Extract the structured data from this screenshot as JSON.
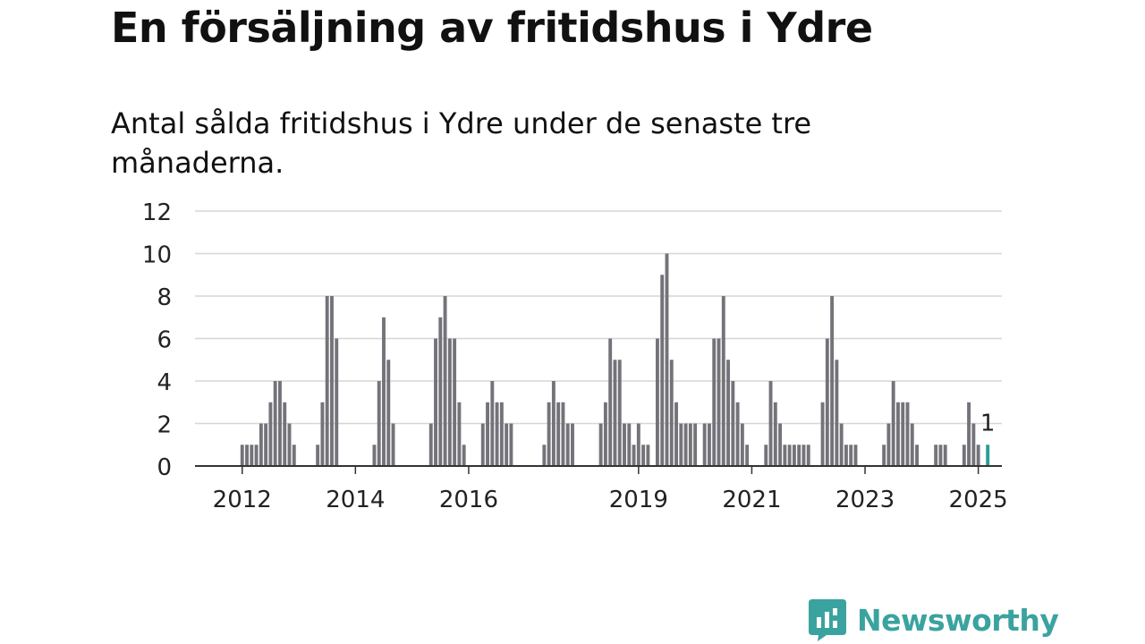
{
  "header": {
    "title": "En försäljning av fritidshus i Ydre",
    "subtitle": "Antal sålda fritidshus i Ydre under de senaste tre månaderna."
  },
  "brand": {
    "name": "Newsworthy",
    "icon": "newsworthy-logo-icon",
    "color": "#3aa39f"
  },
  "colors": {
    "bar": "#74737a",
    "highlight": "#2a9d93",
    "grid": "#d6d6d6",
    "axis": "#333333"
  },
  "chart_data": {
    "type": "bar",
    "title": "",
    "xlabel": "",
    "ylabel": "",
    "ylim": [
      0,
      12
    ],
    "yticks": [
      0,
      2,
      4,
      6,
      8,
      10,
      12
    ],
    "xlim": [
      "2011-03",
      "2025-06"
    ],
    "xticks": [
      {
        "label": "2012",
        "x": "2012-01"
      },
      {
        "label": "2014",
        "x": "2014-01"
      },
      {
        "label": "2016",
        "x": "2016-01"
      },
      {
        "label": "2019",
        "x": "2019-01"
      },
      {
        "label": "2021",
        "x": "2021-01"
      },
      {
        "label": "2023",
        "x": "2023-01"
      },
      {
        "label": "2025",
        "x": "2025-01"
      }
    ],
    "grid": true,
    "series": [
      {
        "values": [
          [
            "2012-01",
            1
          ],
          [
            "2012-02",
            1
          ],
          [
            "2012-03",
            1
          ],
          [
            "2012-04",
            1
          ],
          [
            "2012-05",
            2
          ],
          [
            "2012-06",
            2
          ],
          [
            "2012-07",
            3
          ],
          [
            "2012-08",
            4
          ],
          [
            "2012-09",
            4
          ],
          [
            "2012-10",
            3
          ],
          [
            "2012-11",
            2
          ],
          [
            "2012-12",
            1
          ],
          [
            "2013-05",
            1
          ],
          [
            "2013-06",
            3
          ],
          [
            "2013-07",
            8
          ],
          [
            "2013-08",
            8
          ],
          [
            "2013-09",
            6
          ],
          [
            "2014-05",
            1
          ],
          [
            "2014-06",
            4
          ],
          [
            "2014-07",
            7
          ],
          [
            "2014-08",
            5
          ],
          [
            "2014-09",
            2
          ],
          [
            "2015-05",
            2
          ],
          [
            "2015-06",
            6
          ],
          [
            "2015-07",
            7
          ],
          [
            "2015-08",
            8
          ],
          [
            "2015-09",
            6
          ],
          [
            "2015-10",
            6
          ],
          [
            "2015-11",
            3
          ],
          [
            "2015-12",
            1
          ],
          [
            "2016-04",
            2
          ],
          [
            "2016-05",
            3
          ],
          [
            "2016-06",
            4
          ],
          [
            "2016-07",
            3
          ],
          [
            "2016-08",
            3
          ],
          [
            "2016-09",
            2
          ],
          [
            "2016-10",
            2
          ],
          [
            "2017-05",
            1
          ],
          [
            "2017-06",
            3
          ],
          [
            "2017-07",
            4
          ],
          [
            "2017-08",
            3
          ],
          [
            "2017-09",
            3
          ],
          [
            "2017-10",
            2
          ],
          [
            "2017-11",
            2
          ],
          [
            "2018-05",
            2
          ],
          [
            "2018-06",
            3
          ],
          [
            "2018-07",
            6
          ],
          [
            "2018-08",
            5
          ],
          [
            "2018-09",
            5
          ],
          [
            "2018-10",
            2
          ],
          [
            "2018-11",
            2
          ],
          [
            "2018-12",
            1
          ],
          [
            "2019-01",
            2
          ],
          [
            "2019-02",
            1
          ],
          [
            "2019-03",
            1
          ],
          [
            "2019-05",
            6
          ],
          [
            "2019-06",
            9
          ],
          [
            "2019-07",
            10
          ],
          [
            "2019-08",
            5
          ],
          [
            "2019-09",
            3
          ],
          [
            "2019-10",
            2
          ],
          [
            "2019-11",
            2
          ],
          [
            "2019-12",
            2
          ],
          [
            "2020-01",
            2
          ],
          [
            "2020-03",
            2
          ],
          [
            "2020-04",
            2
          ],
          [
            "2020-05",
            6
          ],
          [
            "2020-06",
            6
          ],
          [
            "2020-07",
            8
          ],
          [
            "2020-08",
            5
          ],
          [
            "2020-09",
            4
          ],
          [
            "2020-10",
            3
          ],
          [
            "2020-11",
            2
          ],
          [
            "2020-12",
            1
          ],
          [
            "2021-04",
            1
          ],
          [
            "2021-05",
            4
          ],
          [
            "2021-06",
            3
          ],
          [
            "2021-07",
            2
          ],
          [
            "2021-08",
            1
          ],
          [
            "2021-09",
            1
          ],
          [
            "2021-10",
            1
          ],
          [
            "2021-11",
            1
          ],
          [
            "2021-12",
            1
          ],
          [
            "2022-01",
            1
          ],
          [
            "2022-04",
            3
          ],
          [
            "2022-05",
            6
          ],
          [
            "2022-06",
            8
          ],
          [
            "2022-07",
            5
          ],
          [
            "2022-08",
            2
          ],
          [
            "2022-09",
            1
          ],
          [
            "2022-10",
            1
          ],
          [
            "2022-11",
            1
          ],
          [
            "2023-05",
            1
          ],
          [
            "2023-06",
            2
          ],
          [
            "2023-07",
            4
          ],
          [
            "2023-08",
            3
          ],
          [
            "2023-09",
            3
          ],
          [
            "2023-10",
            3
          ],
          [
            "2023-11",
            2
          ],
          [
            "2023-12",
            1
          ],
          [
            "2024-04",
            1
          ],
          [
            "2024-05",
            1
          ],
          [
            "2024-06",
            1
          ],
          [
            "2024-10",
            1
          ],
          [
            "2024-11",
            3
          ],
          [
            "2024-12",
            2
          ],
          [
            "2025-01",
            1
          ]
        ]
      },
      {
        "highlight": true,
        "values": [
          [
            "2025-03",
            1
          ]
        ]
      }
    ],
    "annotations": [
      {
        "x": "2025-03",
        "y": 1,
        "text": "1"
      }
    ]
  }
}
